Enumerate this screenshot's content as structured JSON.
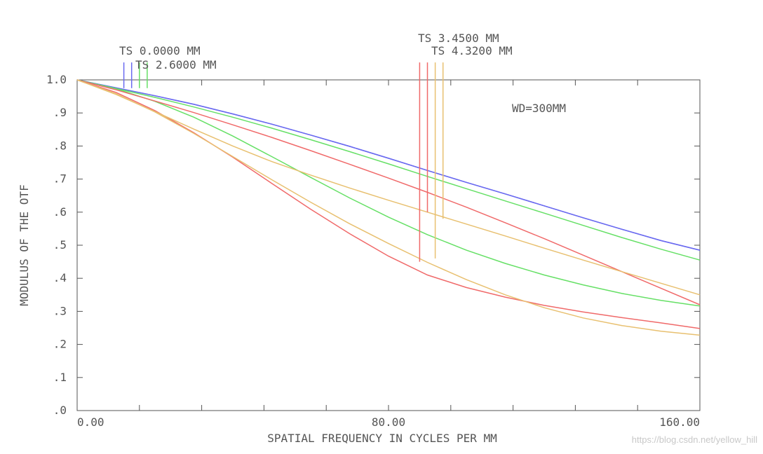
{
  "chart_data": {
    "type": "line",
    "xlabel": "SPATIAL FREQUENCY IN CYCLES PER MM",
    "ylabel": "MODULUS OF THE OTF",
    "xlim": [
      0,
      160
    ],
    "ylim": [
      0,
      1
    ],
    "x_ticks": [
      0,
      16,
      32,
      48,
      64,
      80,
      96,
      112,
      128,
      144,
      160
    ],
    "x_tick_labels": [
      {
        "value": 0,
        "label": "0.00"
      },
      {
        "value": 80,
        "label": "80.00"
      },
      {
        "value": 160,
        "label": "160.00"
      }
    ],
    "y_tick_labels": [
      {
        "value": 0,
        "label": ".0"
      },
      {
        "value": 0.1,
        "label": ".1"
      },
      {
        "value": 0.2,
        "label": ".2"
      },
      {
        "value": 0.3,
        "label": ".3"
      },
      {
        "value": 0.4,
        "label": ".4"
      },
      {
        "value": 0.5,
        "label": ".5"
      },
      {
        "value": 0.6,
        "label": ".6"
      },
      {
        "value": 0.7,
        "label": ".7"
      },
      {
        "value": 0.8,
        "label": ".8"
      },
      {
        "value": 0.9,
        "label": ".9"
      },
      {
        "value": 1.0,
        "label": "1.0"
      }
    ],
    "annotation": "WD=300MM",
    "legend": [
      {
        "label": "TS 0.0000 MM",
        "color": "#6a6af0"
      },
      {
        "label": "TS 2.6000 MM",
        "color": "#66e066"
      },
      {
        "label": "TS 3.4500 MM",
        "color": "#f06a6a"
      },
      {
        "label": "TS 4.3200 MM",
        "color": "#e8c070"
      }
    ],
    "series": [
      {
        "color": "#6a6af0",
        "x": [
          0,
          10,
          20,
          30,
          40,
          50,
          60,
          70,
          80,
          90,
          100,
          110,
          120,
          130,
          140,
          150,
          160
        ],
        "values": [
          1.0,
          0.976,
          0.952,
          0.926,
          0.897,
          0.866,
          0.833,
          0.799,
          0.763,
          0.726,
          0.69,
          0.655,
          0.619,
          0.583,
          0.548,
          0.514,
          0.485
        ]
      },
      {
        "color": "#6a6af0",
        "x": [
          0,
          10,
          20,
          30,
          40,
          50,
          60,
          70,
          80,
          90,
          100,
          110,
          120,
          130,
          140,
          150,
          160
        ],
        "values": [
          1.0,
          0.976,
          0.952,
          0.926,
          0.897,
          0.866,
          0.833,
          0.799,
          0.763,
          0.726,
          0.69,
          0.655,
          0.619,
          0.583,
          0.548,
          0.514,
          0.485
        ]
      },
      {
        "color": "#66e066",
        "x": [
          0,
          10,
          20,
          30,
          40,
          50,
          60,
          70,
          80,
          90,
          100,
          110,
          120,
          130,
          140,
          150,
          160
        ],
        "values": [
          1.0,
          0.974,
          0.947,
          0.918,
          0.887,
          0.854,
          0.819,
          0.783,
          0.746,
          0.708,
          0.671,
          0.634,
          0.597,
          0.56,
          0.523,
          0.488,
          0.455
        ]
      },
      {
        "color": "#66e066",
        "x": [
          0,
          10,
          20,
          30,
          40,
          50,
          60,
          70,
          80,
          90,
          100,
          110,
          120,
          130,
          140,
          150,
          160
        ],
        "values": [
          1.0,
          0.973,
          0.935,
          0.887,
          0.83,
          0.768,
          0.705,
          0.643,
          0.585,
          0.532,
          0.485,
          0.445,
          0.41,
          0.38,
          0.354,
          0.333,
          0.316
        ]
      },
      {
        "color": "#f06a6a",
        "x": [
          0,
          10,
          20,
          30,
          40,
          50,
          60,
          70,
          80,
          90,
          100,
          110,
          120,
          130,
          140,
          150,
          160
        ],
        "values": [
          1.0,
          0.97,
          0.936,
          0.901,
          0.864,
          0.826,
          0.786,
          0.745,
          0.703,
          0.66,
          0.615,
          0.568,
          0.52,
          0.47,
          0.42,
          0.37,
          0.32
        ]
      },
      {
        "color": "#f06a6a",
        "x": [
          0,
          10,
          20,
          30,
          40,
          50,
          60,
          70,
          80,
          90,
          100,
          110,
          120,
          130,
          140,
          150,
          160
        ],
        "values": [
          1.0,
          0.962,
          0.907,
          0.84,
          0.766,
          0.687,
          0.609,
          0.535,
          0.467,
          0.41,
          0.372,
          0.343,
          0.318,
          0.298,
          0.281,
          0.265,
          0.248
        ]
      },
      {
        "color": "#e8c070",
        "x": [
          0,
          10,
          20,
          30,
          40,
          50,
          60,
          70,
          80,
          90,
          100,
          110,
          120,
          130,
          140,
          150,
          160
        ],
        "values": [
          1.0,
          0.956,
          0.904,
          0.851,
          0.8,
          0.753,
          0.712,
          0.673,
          0.636,
          0.6,
          0.564,
          0.528,
          0.491,
          0.455,
          0.42,
          0.385,
          0.35
        ]
      },
      {
        "color": "#e8c070",
        "x": [
          0,
          10,
          20,
          30,
          40,
          50,
          60,
          70,
          80,
          90,
          100,
          110,
          120,
          130,
          140,
          150,
          160
        ],
        "values": [
          1.0,
          0.958,
          0.903,
          0.838,
          0.768,
          0.698,
          0.63,
          0.565,
          0.505,
          0.448,
          0.396,
          0.35,
          0.311,
          0.28,
          0.257,
          0.24,
          0.228
        ]
      }
    ],
    "markers": [
      {
        "x": 12.0,
        "y": 0.975,
        "color": "#6a6af0"
      },
      {
        "x": 14.0,
        "y": 0.975,
        "color": "#6a6af0"
      },
      {
        "x": 16.0,
        "y": 0.975,
        "color": "#66e066"
      },
      {
        "x": 18.0,
        "y": 0.975,
        "color": "#66e066"
      },
      {
        "x": 88.0,
        "y": 0.45,
        "color": "#f06a6a"
      },
      {
        "x": 90.0,
        "y": 0.6,
        "color": "#f06a6a"
      },
      {
        "x": 92.0,
        "y": 0.46,
        "color": "#e8c070"
      },
      {
        "x": 94.0,
        "y": 0.58,
        "color": "#e8c070"
      }
    ]
  },
  "watermark": "https://blog.csdn.net/yellow_hill"
}
